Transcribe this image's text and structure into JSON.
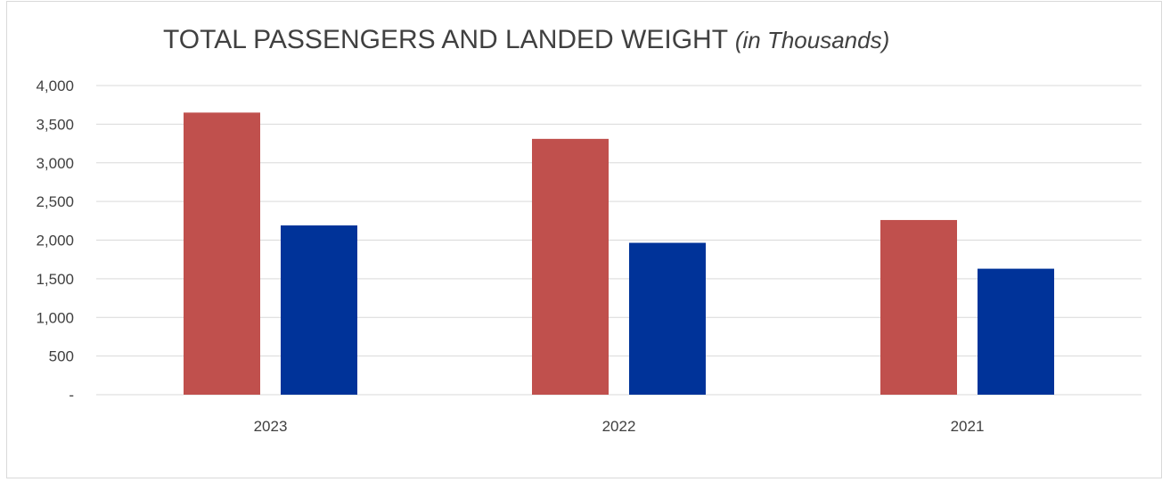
{
  "chart_data": {
    "type": "bar",
    "title": "TOTAL PASSENGERS AND LANDED WEIGHT",
    "subtitle": "(in Thousands)",
    "categories": [
      "2023",
      "2022",
      "2021"
    ],
    "series": [
      {
        "color": "#c0504d",
        "values": [
          3650,
          3310,
          2260
        ]
      },
      {
        "color": "#003399",
        "values": [
          2190,
          1965,
          1630
        ]
      }
    ],
    "ylim": [
      0,
      4000
    ],
    "yticks": [
      0,
      500,
      1000,
      1500,
      2000,
      2500,
      3000,
      3500,
      4000
    ],
    "ytick_labels": [
      "-",
      "500",
      "1,000",
      "1,500",
      "2,000",
      "2,500",
      "3,000",
      "3,500",
      "4,000"
    ],
    "grid": true,
    "legend": "none"
  }
}
